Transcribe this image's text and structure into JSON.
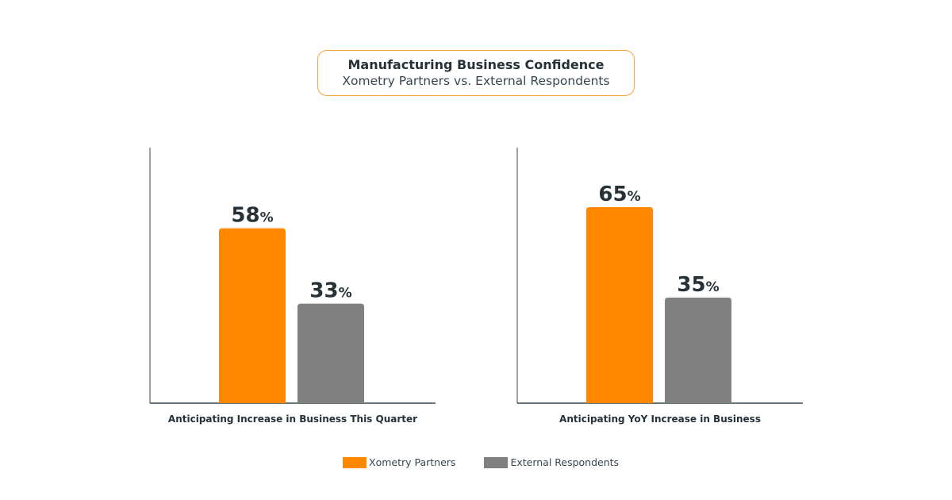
{
  "header": {
    "title": "Manufacturing Business Confidence",
    "subtitle": "Xometry Partners vs. External Respondents"
  },
  "colors": {
    "xometry": "#ff8800",
    "external": "#808080",
    "axis": "#37474f",
    "label": "#263238",
    "border": "#f7a23b"
  },
  "legend": [
    {
      "label": "Xometry Partners",
      "color": "#ff8800"
    },
    {
      "label": "External Respondents",
      "color": "#808080"
    }
  ],
  "chart_data": [
    {
      "type": "bar",
      "title": "",
      "xlabel": "Anticipating Increase in Business This Quarter",
      "ylabel": "",
      "ylim": [
        0,
        100
      ],
      "categories": [
        "Xometry Partners",
        "External Respondents"
      ],
      "values": [
        58,
        33
      ],
      "unit": "%"
    },
    {
      "type": "bar",
      "title": "",
      "xlabel": "Anticipating YoY Increase in Business",
      "ylabel": "",
      "ylim": [
        0,
        100
      ],
      "categories": [
        "Xometry Partners",
        "External Respondents"
      ],
      "values": [
        65,
        35
      ],
      "unit": "%"
    }
  ]
}
